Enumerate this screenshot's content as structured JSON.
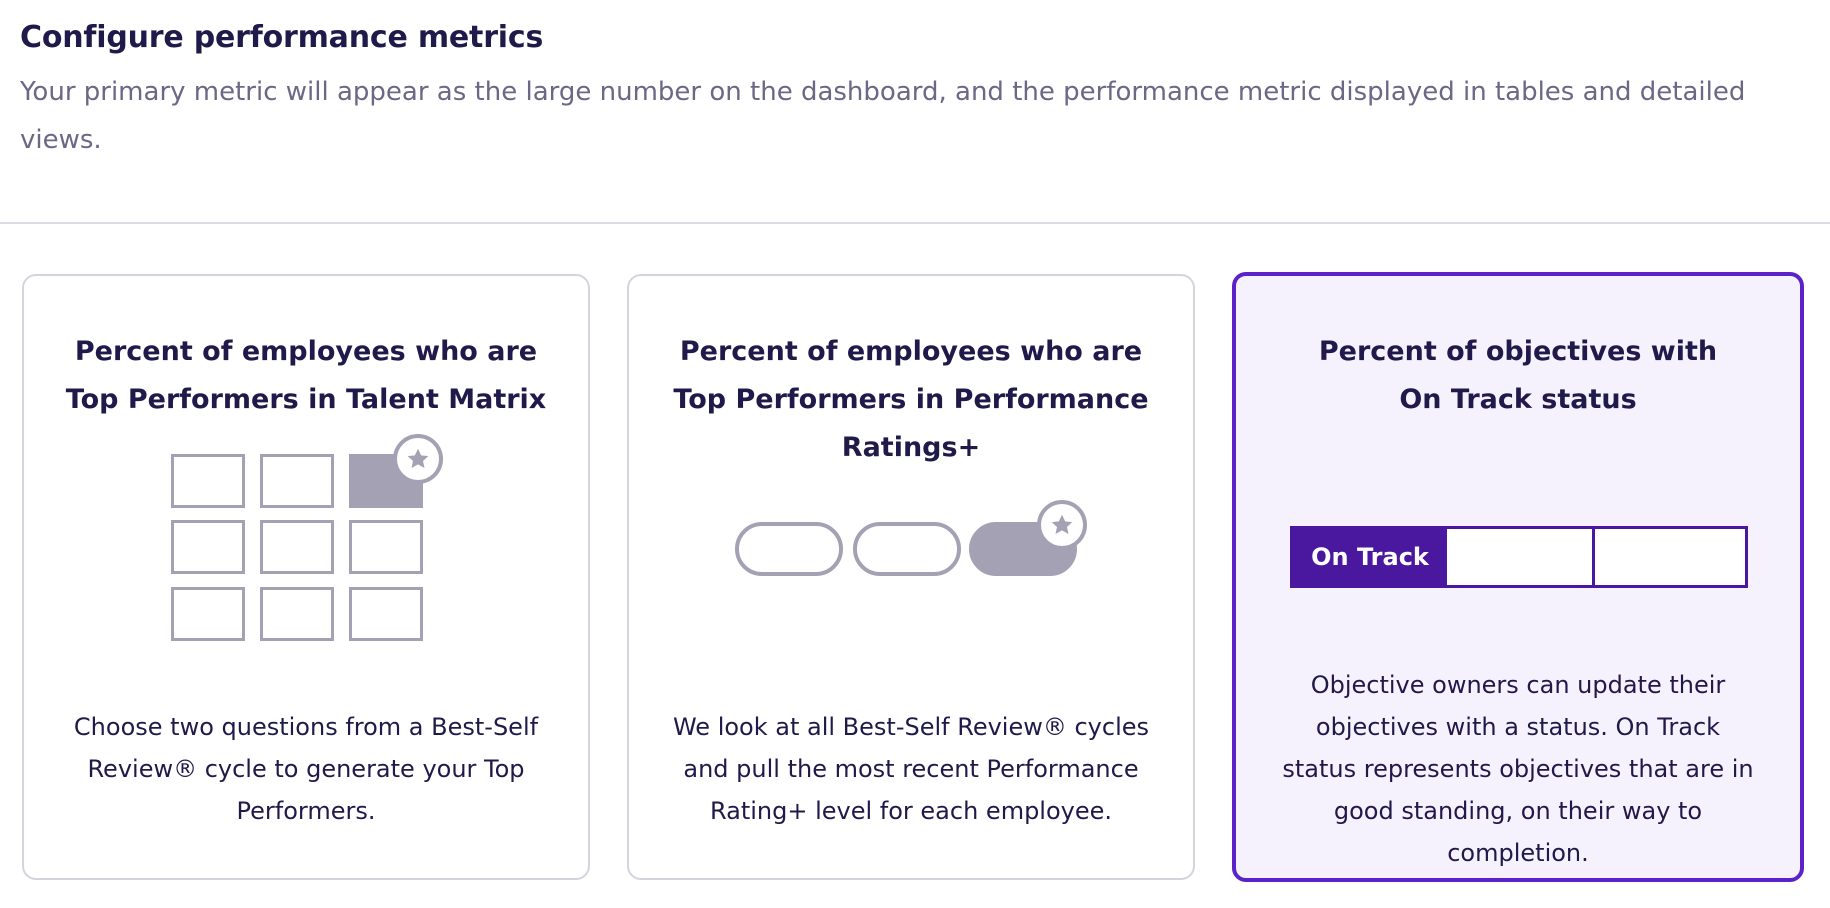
{
  "header": {
    "title": "Configure performance metrics",
    "subtitle": "Your primary metric will appear as the large number on the dashboard, and the performance metric displayed in tables and detailed views."
  },
  "cards": [
    {
      "title": "Percent of employees who are Top Performers in Talent Matrix",
      "description": "Choose two questions from a Best-Self Review® cycle to generate your Top Performers.",
      "icon": "talent-matrix-grid-icon",
      "selected": false
    },
    {
      "title": "Percent of employees who are Top Performers in Performance Ratings+",
      "description": "We look at all Best-Self Review® cycles and pull the most recent Performance Rating+ level for each employee.",
      "icon": "performance-ratings-pills-icon",
      "selected": false
    },
    {
      "title_line1": "Percent of objectives with",
      "title_line2": "On Track status",
      "description": "Objective owners can update their objectives with a status. On Track status represents objectives that are in good standing, on their way to completion.",
      "status_label": "On Track",
      "selected": true
    }
  ],
  "colors": {
    "accent": "#5a22c8",
    "accent_dark": "#4a179f",
    "illustration_gray": "#a3a1b3",
    "text_dark": "#1f1a4a",
    "text_muted": "#6c6785",
    "selected_bg": "#f5f2fd"
  }
}
